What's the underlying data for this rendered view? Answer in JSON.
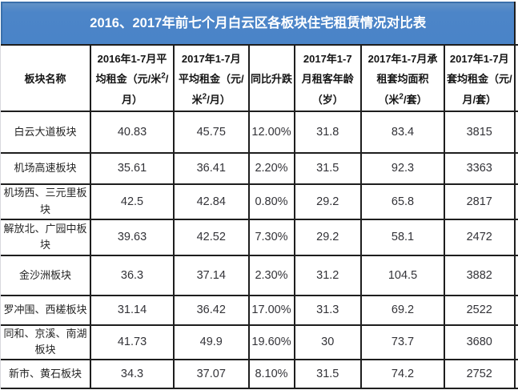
{
  "title": "2016、2017年前七个月白云区各板块住宅租赁情况对比表",
  "accent_colors": {
    "title_background": "#4c85c8",
    "title_border": "#3a70ab",
    "grid_line": "#1e1e1e",
    "title_text": "#ffffff",
    "body_text": "#333338"
  },
  "columns": {
    "name": "板块名称",
    "avg2016": [
      "2016年1-7月平",
      "均租金（元/米²/",
      "月）"
    ],
    "avg2017": [
      "2017年1-7月",
      "平均租金（元/",
      "米²/月）"
    ],
    "yoy": "同比升跌",
    "age": [
      "2017年1-7",
      "月租客年龄",
      "（岁）"
    ],
    "area": [
      "2017年1-7月承",
      "租套均面积",
      "（米²/套）"
    ],
    "rent_per_unit": [
      "2017年1-7月",
      "套均租金（元/",
      "月/套）"
    ]
  },
  "rows": [
    {
      "name": "白云大道板块",
      "avg2016": "40.83",
      "avg2017": "45.75",
      "yoy": "12.00%",
      "age": "31.8",
      "area": "83.4",
      "rent_per_unit": "3815"
    },
    {
      "name": "机场高速板块",
      "avg2016": "35.61",
      "avg2017": "36.41",
      "yoy": "2.20%",
      "age": "31.5",
      "area": "92.3",
      "rent_per_unit": "3363"
    },
    {
      "name": "机场西、三元里板块",
      "avg2016": "42.5",
      "avg2017": "42.84",
      "yoy": "0.80%",
      "age": "29.2",
      "area": "65.8",
      "rent_per_unit": "2817"
    },
    {
      "name": "解放北、广园中板块",
      "avg2016": "39.63",
      "avg2017": "42.52",
      "yoy": "7.30%",
      "age": "29.2",
      "area": "58.1",
      "rent_per_unit": "2472"
    },
    {
      "name": "金沙洲板块",
      "avg2016": "36.3",
      "avg2017": "37.14",
      "yoy": "2.30%",
      "age": "31.2",
      "area": "104.5",
      "rent_per_unit": "3882"
    },
    {
      "name": "罗冲围、西槎板块",
      "avg2016": "31.14",
      "avg2017": "36.42",
      "yoy": "17.00%",
      "age": "31.3",
      "area": "69.2",
      "rent_per_unit": "2522"
    },
    {
      "name": "同和、京溪、南湖板块",
      "avg2016": "41.73",
      "avg2017": "49.9",
      "yoy": "19.60%",
      "age": "30",
      "area": "73.7",
      "rent_per_unit": "3680"
    },
    {
      "name": "新市、黄石板块",
      "avg2016": "34.3",
      "avg2017": "37.07",
      "yoy": "8.10%",
      "age": "31.5",
      "area": "74.2",
      "rent_per_unit": "2752"
    }
  ],
  "chart_data": {
    "type": "table",
    "title": "2016、2017年前七个月白云区各板块住宅租赁情况对比表",
    "columns": [
      "板块名称",
      "2016年1-7月平均租金（元/米²/月）",
      "2017年1-7月平均租金（元/米²/月）",
      "同比升跌",
      "2017年1-7月租客年龄（岁）",
      "2017年1-7月承租套均面积（米²/套）",
      "2017年1-7月套均租金（元/月/套）"
    ],
    "rows": [
      [
        "白云大道板块",
        40.83,
        45.75,
        "12.00%",
        31.8,
        83.4,
        3815
      ],
      [
        "机场高速板块",
        35.61,
        36.41,
        "2.20%",
        31.5,
        92.3,
        3363
      ],
      [
        "机场西、三元里板块",
        42.5,
        42.84,
        "0.80%",
        29.2,
        65.8,
        2817
      ],
      [
        "解放北、广园中板块",
        39.63,
        42.52,
        "7.30%",
        29.2,
        58.1,
        2472
      ],
      [
        "金沙洲板块",
        36.3,
        37.14,
        "2.30%",
        31.2,
        104.5,
        3882
      ],
      [
        "罗冲围、西槎板块",
        31.14,
        36.42,
        "17.00%",
        31.3,
        69.2,
        2522
      ],
      [
        "同和、京溪、南湖板块",
        41.73,
        49.9,
        "19.60%",
        30,
        73.7,
        3680
      ],
      [
        "新市、黄石板块",
        34.3,
        37.07,
        "8.10%",
        31.5,
        74.2,
        2752
      ]
    ]
  }
}
